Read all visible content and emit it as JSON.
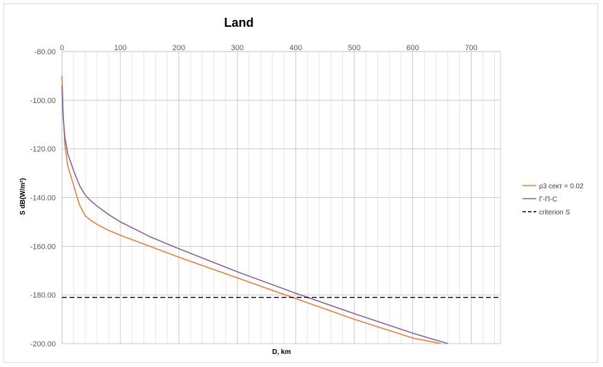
{
  "chart_data": {
    "type": "line",
    "title": "Land",
    "xlabel": "D, km",
    "ylabel": "S dB(W/m²)",
    "xlim": [
      0,
      750
    ],
    "ylim": [
      -200,
      -80
    ],
    "x_ticks": [
      0,
      100,
      200,
      300,
      400,
      500,
      600,
      700
    ],
    "x_tick_labels": [
      "0",
      "100",
      "200",
      "300",
      "400",
      "500",
      "600",
      "700"
    ],
    "y_ticks": [
      -80,
      -100,
      -120,
      -140,
      -160,
      -180,
      -200
    ],
    "y_tick_labels": [
      "-80.00",
      "-100.00",
      "-120.00",
      "-140.00",
      "-160.00",
      "-180.00",
      "-200.00"
    ],
    "x_axis_position": "top",
    "grid": {
      "x_major": true,
      "x_minor": true,
      "y_major": true
    },
    "legend": {
      "position": "right"
    },
    "series": [
      {
        "name": "ρ3 сект = 0.02",
        "color": "#ED7D31",
        "style": "solid",
        "x": [
          0,
          2,
          5,
          10,
          20,
          30,
          40,
          50,
          60,
          80,
          100,
          150,
          200,
          300,
          400,
          500,
          600,
          648
        ],
        "y": [
          -90,
          -105,
          -118,
          -127,
          -135,
          -143,
          -147.5,
          -149.5,
          -151,
          -153.5,
          -155.5,
          -160,
          -164.5,
          -173,
          -181.5,
          -190,
          -197.7,
          -200
        ]
      },
      {
        "name": "Г-П-С",
        "color": "#8064A2",
        "style": "solid",
        "x": [
          0,
          2,
          5,
          10,
          20,
          30,
          40,
          50,
          60,
          80,
          100,
          150,
          200,
          300,
          400,
          500,
          600,
          660
        ],
        "y": [
          -94,
          -107,
          -115,
          -122,
          -129,
          -135,
          -139,
          -141.5,
          -143.5,
          -147,
          -150,
          -156,
          -161,
          -170.5,
          -179.3,
          -187.7,
          -195.7,
          -200
        ]
      },
      {
        "name": "criterion S",
        "color": "#000000",
        "style": "dashed",
        "x": [
          0,
          750
        ],
        "y": [
          -181,
          -181
        ]
      }
    ]
  }
}
